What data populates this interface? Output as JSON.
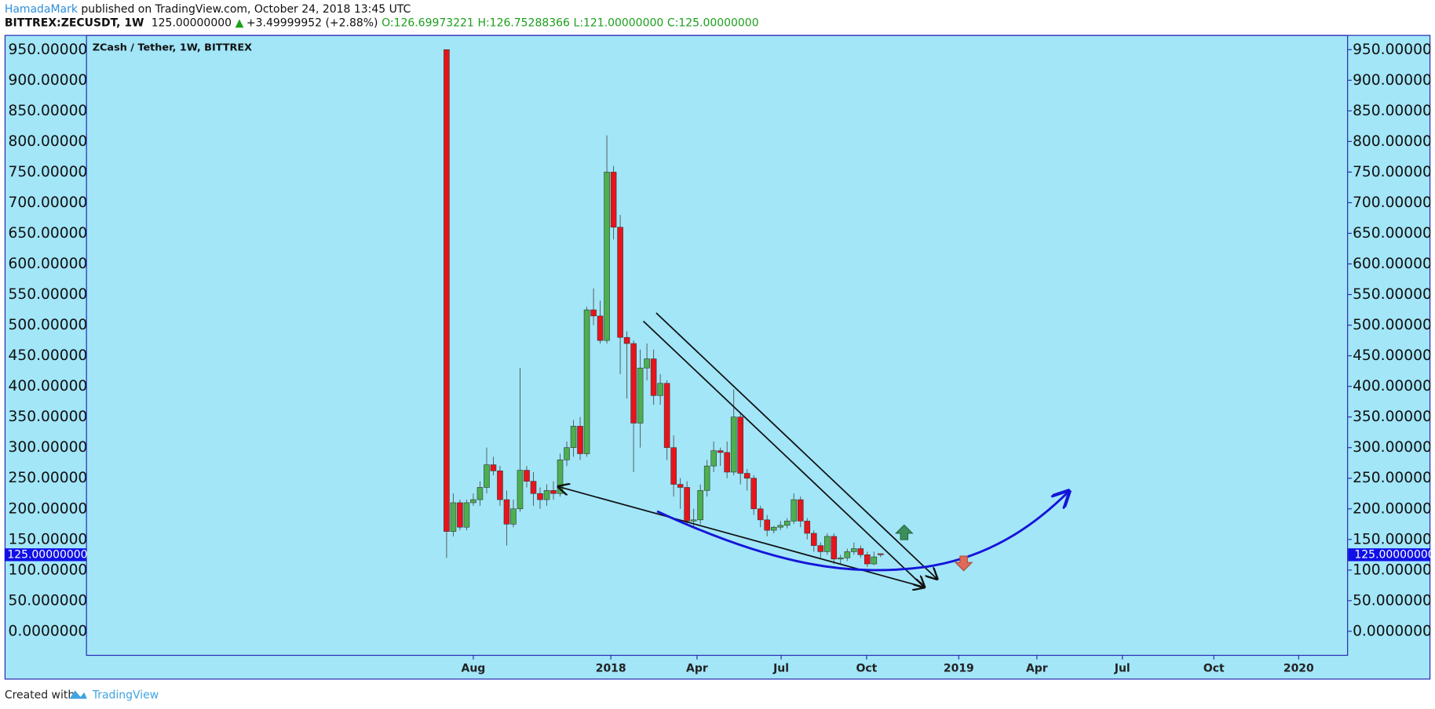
{
  "header": {
    "author": "HamadaMark",
    "published": "published on TradingView.com, October 24, 2018 13:45 UTC",
    "symbol": "BITTREX:ZECUSDT, 1W",
    "last": "125.00000000",
    "change": "+3.49999952 (+2.88%)",
    "open": "O:126.69973221",
    "high": "H:126.75288366",
    "low": "L:121.00000000",
    "close": "C:125.00000000"
  },
  "footer": {
    "created": "Created with",
    "brand": "TradingView"
  },
  "chart_data": {
    "type": "candlestick",
    "title": "ZCash / Tether, 1W, BITTREX",
    "up_color": "#4caf50",
    "down_color": "#e8141b",
    "background": "#a2e6f8",
    "last_price_label": "125.00000000",
    "xlim": [
      -54,
      135
    ],
    "xticks": [
      {
        "value": 4,
        "label": "Aug"
      },
      {
        "value": 24.6,
        "label": "2018"
      },
      {
        "value": 37.5,
        "label": "Apr"
      },
      {
        "value": 50.1,
        "label": "Jul"
      },
      {
        "value": 62.9,
        "label": "Oct"
      },
      {
        "value": 76.7,
        "label": "2019"
      },
      {
        "value": 88.4,
        "label": "Apr"
      },
      {
        "value": 101.2,
        "label": "Jul"
      },
      {
        "value": 114.9,
        "label": "Oct"
      },
      {
        "value": 127.6,
        "label": "2020"
      }
    ],
    "ylim": [
      -40,
      974
    ],
    "yticks": [
      {
        "value": 0,
        "label": "0.0000000"
      },
      {
        "value": 50,
        "label": "50.0000000"
      },
      {
        "value": 100,
        "label": "100.0000000"
      },
      {
        "value": 150,
        "label": "150.0000000"
      },
      {
        "value": 200,
        "label": "200.0000000"
      },
      {
        "value": 250,
        "label": "250.0000000"
      },
      {
        "value": 300,
        "label": "300.0000000"
      },
      {
        "value": 350,
        "label": "350.0000000"
      },
      {
        "value": 400,
        "label": "400.0000000"
      },
      {
        "value": 450,
        "label": "450.0000000"
      },
      {
        "value": 500,
        "label": "500.0000000"
      },
      {
        "value": 550,
        "label": "550.0000000"
      },
      {
        "value": 600,
        "label": "600.0000000"
      },
      {
        "value": 650,
        "label": "650.0000000"
      },
      {
        "value": 700,
        "label": "700.0000000"
      },
      {
        "value": 750,
        "label": "750.0000000"
      },
      {
        "value": 800,
        "label": "800.0000000"
      },
      {
        "value": 850,
        "label": "850.0000000"
      },
      {
        "value": 900,
        "label": "900.0000000"
      },
      {
        "value": 950,
        "label": "950.0000000"
      }
    ],
    "ohlc": [
      [
        950,
        950,
        120,
        163
      ],
      [
        163,
        225,
        155,
        210
      ],
      [
        210,
        215,
        165,
        170
      ],
      [
        170,
        215,
        165,
        210
      ],
      [
        210,
        225,
        205,
        215
      ],
      [
        215,
        245,
        205,
        235
      ],
      [
        235,
        300,
        225,
        272
      ],
      [
        272,
        285,
        255,
        262
      ],
      [
        262,
        270,
        205,
        215
      ],
      [
        215,
        230,
        140,
        175
      ],
      [
        175,
        215,
        170,
        200
      ],
      [
        200,
        430,
        195,
        263
      ],
      [
        263,
        270,
        235,
        245
      ],
      [
        245,
        260,
        205,
        225
      ],
      [
        225,
        235,
        200,
        215
      ],
      [
        215,
        240,
        205,
        230
      ],
      [
        230,
        245,
        215,
        225
      ],
      [
        225,
        290,
        220,
        280
      ],
      [
        280,
        310,
        270,
        300
      ],
      [
        300,
        345,
        285,
        335
      ],
      [
        335,
        350,
        280,
        290
      ],
      [
        290,
        530,
        285,
        525
      ],
      [
        525,
        560,
        500,
        515
      ],
      [
        515,
        540,
        470,
        475
      ],
      [
        475,
        810,
        470,
        750
      ],
      [
        750,
        760,
        640,
        660
      ],
      [
        660,
        680,
        420,
        480
      ],
      [
        480,
        490,
        380,
        470
      ],
      [
        470,
        475,
        260,
        340
      ],
      [
        340,
        460,
        300,
        430
      ],
      [
        430,
        470,
        410,
        445
      ],
      [
        445,
        460,
        370,
        385
      ],
      [
        385,
        420,
        370,
        405
      ],
      [
        405,
        410,
        280,
        300
      ],
      [
        300,
        320,
        220,
        240
      ],
      [
        240,
        250,
        200,
        235
      ],
      [
        235,
        245,
        175,
        180
      ],
      [
        180,
        200,
        170,
        182
      ],
      [
        182,
        240,
        175,
        230
      ],
      [
        230,
        280,
        220,
        270
      ],
      [
        270,
        310,
        260,
        295
      ],
      [
        295,
        300,
        270,
        292
      ],
      [
        292,
        310,
        250,
        260
      ],
      [
        260,
        395,
        255,
        350
      ],
      [
        350,
        355,
        240,
        258
      ],
      [
        258,
        265,
        230,
        250
      ],
      [
        250,
        255,
        190,
        200
      ],
      [
        200,
        205,
        170,
        182
      ],
      [
        182,
        190,
        155,
        165
      ],
      [
        165,
        172,
        160,
        170
      ],
      [
        170,
        180,
        165,
        173
      ],
      [
        173,
        185,
        168,
        180
      ],
      [
        180,
        225,
        175,
        215
      ],
      [
        215,
        220,
        170,
        180
      ],
      [
        180,
        185,
        150,
        160
      ],
      [
        160,
        165,
        130,
        140
      ],
      [
        140,
        145,
        120,
        130
      ],
      [
        130,
        160,
        125,
        155
      ],
      [
        155,
        160,
        110,
        118
      ],
      [
        118,
        125,
        110,
        120
      ],
      [
        120,
        135,
        115,
        130
      ],
      [
        130,
        145,
        125,
        135
      ],
      [
        135,
        140,
        120,
        125
      ],
      [
        125,
        130,
        105,
        110
      ],
      [
        110,
        130,
        108,
        121.5
      ],
      [
        126.7,
        126.75,
        121,
        125
      ]
    ]
  }
}
